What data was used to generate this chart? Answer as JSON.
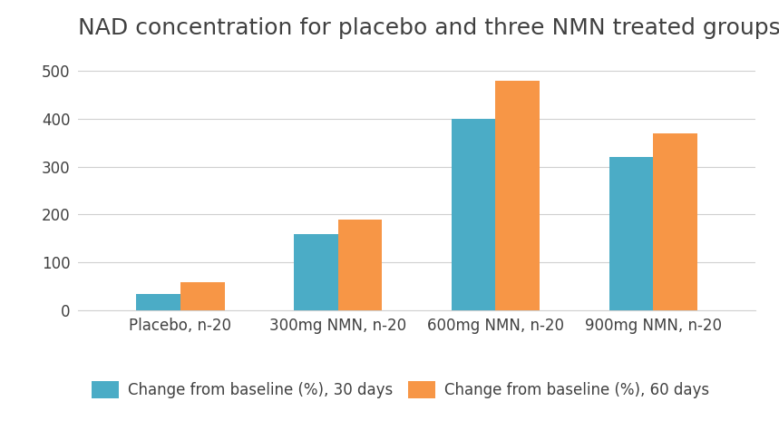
{
  "title": "NAD concentration for placebo and three NMN treated groups",
  "categories": [
    "Placebo, n-20",
    "300mg NMN, n-20",
    "600mg NMN, n-20",
    "900mg NMN, n-20"
  ],
  "series": [
    {
      "label": "Change from baseline (%), 30 days",
      "values": [
        35,
        160,
        400,
        320
      ],
      "color": "#4BACC6"
    },
    {
      "label": "Change from baseline (%), 60 days",
      "values": [
        58,
        190,
        480,
        370
      ],
      "color": "#F79646"
    }
  ],
  "ylim": [
    0,
    540
  ],
  "yticks": [
    0,
    100,
    200,
    300,
    400,
    500
  ],
  "bar_width": 0.28,
  "title_fontsize": 18,
  "tick_fontsize": 12,
  "legend_fontsize": 12,
  "background_color": "#ffffff",
  "grid_color": "#d0d0d0",
  "legend_ncol": 2,
  "title_color": "#404040",
  "tick_color": "#404040"
}
